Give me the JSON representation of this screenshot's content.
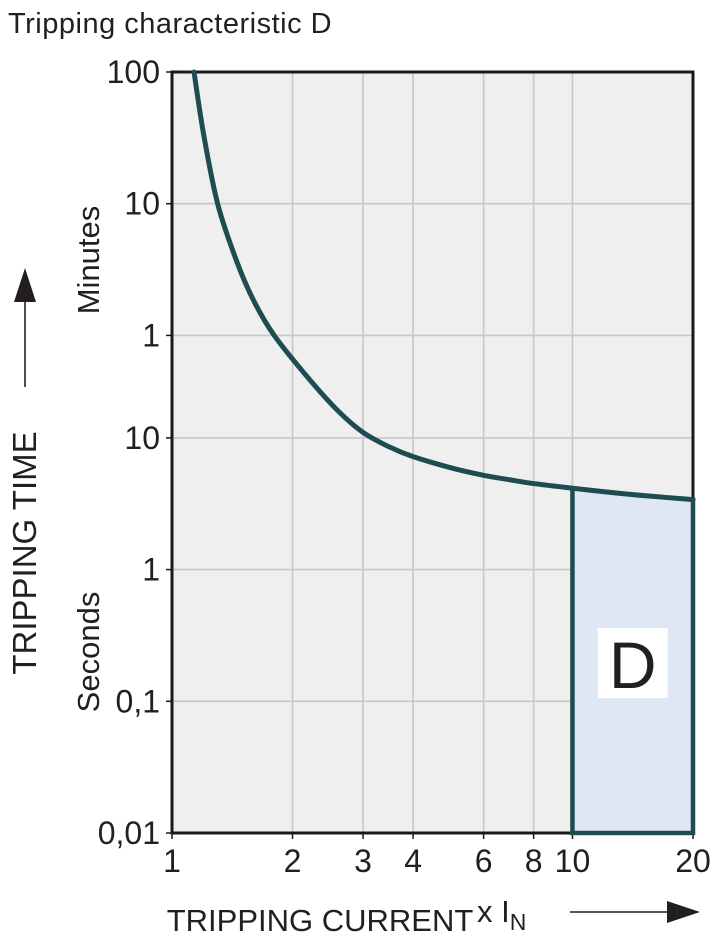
{
  "title": "Tripping characteristic D",
  "colors": {
    "curve": "#1d4d51",
    "region_fill": "#dfe6f4",
    "region_border": "#1d4d51",
    "plot_background": "#efeff0",
    "gridline": "#c7c7c9",
    "plot_border": "#1a1a1a",
    "text": "#231f20",
    "region_label_background": "#ffffff"
  },
  "chart_data": {
    "type": "line",
    "title": "Tripping characteristic D",
    "x_axis": {
      "label": "TRIPPING CURRENT",
      "unit_prefix": "x I",
      "unit_subscript": "N",
      "scale": "log",
      "min": 1,
      "max": 20,
      "ticks": [
        {
          "label": "1",
          "value": 1
        },
        {
          "label": "2",
          "value": 2
        },
        {
          "label": "3",
          "value": 3
        },
        {
          "label": "4",
          "value": 4
        },
        {
          "label": "6",
          "value": 6
        },
        {
          "label": "8",
          "value": 8
        },
        {
          "label": "10",
          "value": 10
        },
        {
          "label": "20",
          "value": 20
        }
      ],
      "gridline_values": [
        2,
        3,
        4,
        6,
        8,
        10
      ]
    },
    "y_axis": {
      "label": "TRIPPING TIME",
      "scale": "log",
      "unit_upper": "Minutes",
      "unit_lower": "Seconds",
      "min_seconds": 0.01,
      "max_seconds": 6000,
      "ticks": [
        {
          "label": "100",
          "seconds": 6000
        },
        {
          "label": "10",
          "seconds": 600
        },
        {
          "label": "1",
          "seconds": 60
        },
        {
          "label": "10",
          "seconds": 10
        },
        {
          "label": "1",
          "seconds": 1
        },
        {
          "label": "0,1",
          "seconds": 0.1
        },
        {
          "label": "0,01",
          "seconds": 0.01
        }
      ],
      "gridline_seconds": [
        600,
        60,
        10,
        1,
        0.1
      ]
    },
    "series": [
      {
        "name": "tripping-curve",
        "points_current_multiple_vs_seconds": [
          [
            1.135,
            6000
          ],
          [
            1.2,
            2000
          ],
          [
            1.3,
            600
          ],
          [
            1.45,
            220
          ],
          [
            1.6,
            110
          ],
          [
            1.8,
            60
          ],
          [
            2.2,
            28
          ],
          [
            2.6,
            16
          ],
          [
            3.0,
            11
          ],
          [
            3.5,
            8.5
          ],
          [
            4,
            7.2
          ],
          [
            5,
            5.9
          ],
          [
            6,
            5.2
          ],
          [
            7,
            4.8
          ],
          [
            8,
            4.5
          ],
          [
            10,
            4.15
          ],
          [
            12,
            3.9
          ],
          [
            15,
            3.65
          ],
          [
            20,
            3.4
          ]
        ]
      }
    ],
    "region": {
      "label": "D",
      "current_from": 10,
      "current_to": 20,
      "time_bottom_seconds": 0.01,
      "top_bound": "tripping-curve"
    }
  }
}
